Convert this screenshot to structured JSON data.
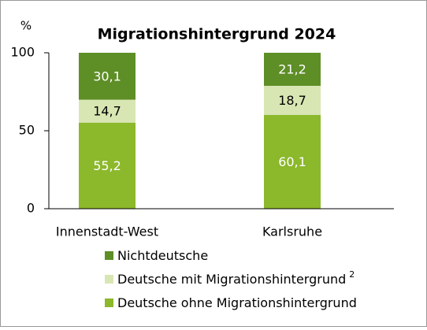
{
  "chart_data": {
    "type": "stacked_bar",
    "title": "Migrationshintergrund 2024",
    "y_label": "%",
    "categories": [
      "Innenstadt-West",
      "Karlsruhe"
    ],
    "series": [
      {
        "name": "Deutsche ohne Migrationshintergrund",
        "color": "#8cb82b",
        "label_color": "#ffffff",
        "values": [
          55.2,
          60.1
        ],
        "value_labels": [
          "55,2",
          "60,1"
        ]
      },
      {
        "name": "Deutsche mit Migrationshintergrund",
        "color": "#d8e6b3",
        "label_color": "#000000",
        "footnote": "2",
        "values": [
          14.7,
          18.7
        ],
        "value_labels": [
          "14,7",
          "18,7"
        ]
      },
      {
        "name": "Nichtdeutsche",
        "color": "#5e8e26",
        "label_color": "#ffffff",
        "values": [
          30.1,
          21.2
        ],
        "value_labels": [
          "30,1",
          "21,2"
        ]
      }
    ],
    "ylim": [
      0,
      100
    ],
    "yticks": [
      0,
      50,
      100
    ],
    "grid": false
  }
}
